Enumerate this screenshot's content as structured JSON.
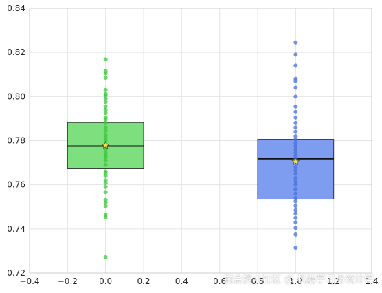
{
  "chart_data": {
    "type": "box",
    "title": "",
    "xlabel": "",
    "ylabel": "",
    "xlim": [
      -0.4,
      1.4
    ],
    "ylim": [
      0.72,
      0.84
    ],
    "xticks": [
      -0.4,
      -0.2,
      0.0,
      0.2,
      0.4,
      0.6,
      0.8,
      1.0,
      1.2,
      1.4
    ],
    "xtick_labels": [
      "−0.4",
      "−0.2",
      "0.0",
      "0.2",
      "0.4",
      "0.6",
      "0.8",
      "1.0",
      "1.2",
      "1.4"
    ],
    "yticks": [
      0.72,
      0.74,
      0.76,
      0.78,
      0.8,
      0.82,
      0.84
    ],
    "ytick_labels": [
      "0.72",
      "0.74",
      "0.76",
      "0.78",
      "0.80",
      "0.82",
      "0.84"
    ],
    "grid": true,
    "series": [
      {
        "position": 0.0,
        "box_width": 0.4,
        "q1": 0.7675,
        "median": 0.7775,
        "q3": 0.7882,
        "mean": 0.7778,
        "fill_color": "#7ddf7d",
        "point_color": "#3cc83c",
        "points": [
          0.7272,
          0.7453,
          0.7465,
          0.7504,
          0.7519,
          0.7531,
          0.7567,
          0.759,
          0.7608,
          0.762,
          0.764,
          0.7652,
          0.766,
          0.769,
          0.771,
          0.7725,
          0.7735,
          0.7745,
          0.776,
          0.777,
          0.7785,
          0.78,
          0.7812,
          0.7825,
          0.7845,
          0.786,
          0.788,
          0.7895,
          0.7905,
          0.7925,
          0.794,
          0.7955,
          0.7975,
          0.799,
          0.8005,
          0.8012,
          0.803,
          0.8085,
          0.8105,
          0.8115,
          0.8168
        ]
      },
      {
        "position": 1.0,
        "box_width": 0.4,
        "q1": 0.7535,
        "median": 0.7718,
        "q3": 0.7806,
        "mean": 0.7705,
        "fill_color": "#7e9df0",
        "point_color": "#4a72d8",
        "points": [
          0.7315,
          0.7375,
          0.7405,
          0.743,
          0.745,
          0.747,
          0.7485,
          0.7505,
          0.7525,
          0.754,
          0.756,
          0.758,
          0.76,
          0.7615,
          0.763,
          0.765,
          0.7665,
          0.768,
          0.77,
          0.7715,
          0.773,
          0.7745,
          0.776,
          0.7775,
          0.779,
          0.7805,
          0.782,
          0.784,
          0.786,
          0.788,
          0.7905,
          0.793,
          0.7955,
          0.8,
          0.804,
          0.807,
          0.808,
          0.814,
          0.819,
          0.8245
        ]
      }
    ]
  },
  "watermark": "掘金技术社区 @ 机器学习与统计学"
}
